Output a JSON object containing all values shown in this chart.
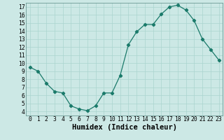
{
  "x": [
    0,
    1,
    2,
    3,
    4,
    5,
    6,
    7,
    8,
    9,
    10,
    11,
    12,
    13,
    14,
    15,
    16,
    17,
    18,
    19,
    20,
    21,
    22,
    23
  ],
  "y": [
    9.5,
    9.0,
    7.5,
    6.5,
    6.3,
    4.7,
    4.3,
    4.1,
    4.7,
    6.3,
    6.3,
    8.5,
    12.3,
    13.9,
    14.8,
    14.8,
    16.1,
    17.0,
    17.2,
    16.6,
    15.3,
    13.0,
    11.7,
    10.4
  ],
  "line_color": "#1a7a6a",
  "marker": "D",
  "marker_size": 2.2,
  "bg_color": "#cce8e5",
  "grid_color": "#aad4cf",
  "xlabel": "Humidex (Indice chaleur)",
  "xlim": [
    -0.5,
    23.5
  ],
  "ylim": [
    3.5,
    17.5
  ],
  "xticks": [
    0,
    1,
    2,
    3,
    4,
    5,
    6,
    7,
    8,
    9,
    10,
    11,
    12,
    13,
    14,
    15,
    16,
    17,
    18,
    19,
    20,
    21,
    22,
    23
  ],
  "yticks": [
    4,
    5,
    6,
    7,
    8,
    9,
    10,
    11,
    12,
    13,
    14,
    15,
    16,
    17
  ],
  "xtick_labels": [
    "0",
    "1",
    "2",
    "3",
    "4",
    "5",
    "6",
    "7",
    "8",
    "9",
    "10",
    "11",
    "12",
    "13",
    "14",
    "15",
    "16",
    "17",
    "18",
    "19",
    "20",
    "21",
    "22",
    "23"
  ],
  "ytick_labels": [
    "4",
    "5",
    "6",
    "7",
    "8",
    "9",
    "10",
    "11",
    "12",
    "13",
    "14",
    "15",
    "16",
    "17"
  ],
  "tick_fontsize": 5.8,
  "xlabel_fontsize": 7.5,
  "linewidth": 0.9
}
